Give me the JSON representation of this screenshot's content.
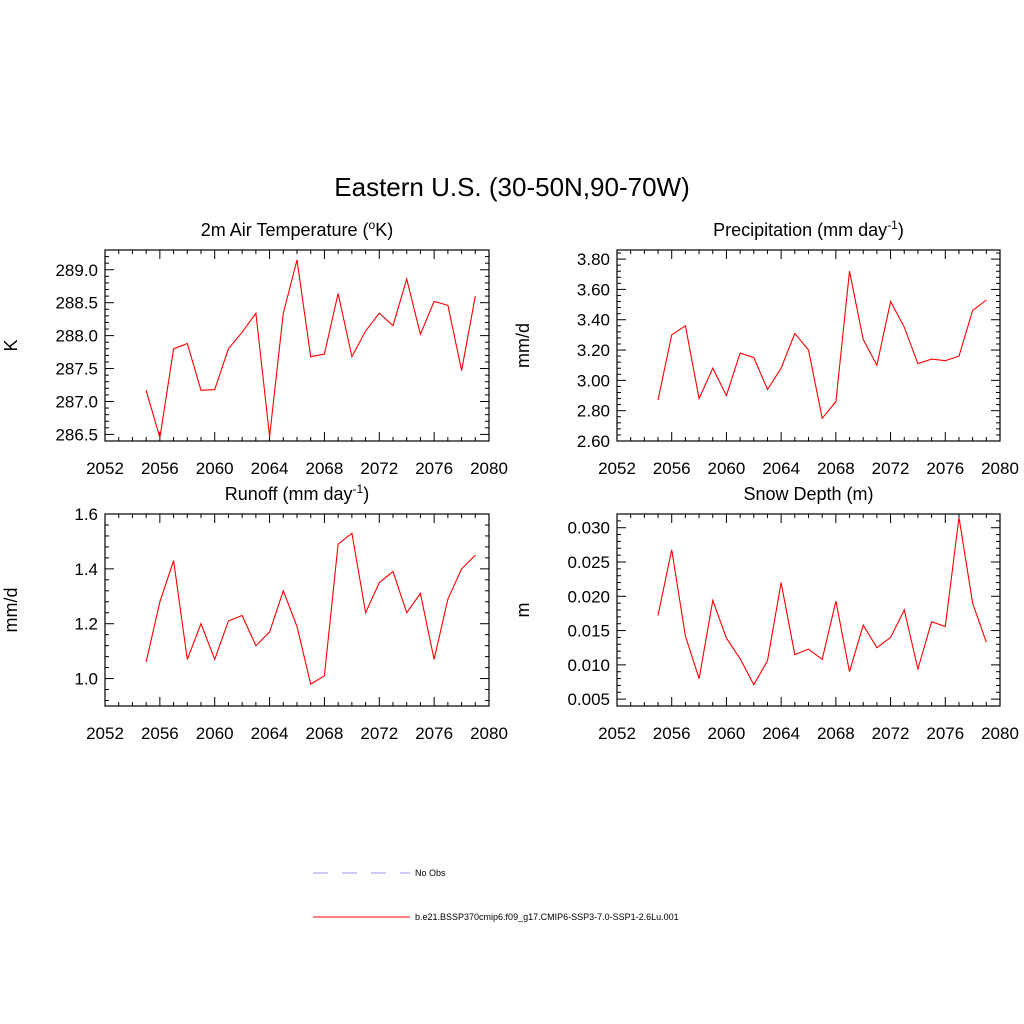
{
  "figure": {
    "title": "Eastern U.S. (30-50N,90-70W)"
  },
  "legend": {
    "items": [
      {
        "label": "No Obs",
        "color": "#9999ee",
        "dash": true
      },
      {
        "label": "b.e21.BSSP370cmip6.f09_g17.CMIP6-SSP3-7.0-SSP1-2.6Lu.001",
        "color": "#ff0000",
        "dash": false
      }
    ]
  },
  "chart_data": [
    {
      "type": "line",
      "title_main": "2m Air Temperature (",
      "title_sup": "o",
      "title_end": "K)",
      "ylabel": "K",
      "xlim": [
        2052,
        2080
      ],
      "xticks": [
        2052,
        2056,
        2060,
        2064,
        2068,
        2072,
        2076,
        2080
      ],
      "ylim": [
        286.4,
        289.3
      ],
      "yticks": [
        286.5,
        287.0,
        287.5,
        288.0,
        288.5,
        289.0
      ],
      "ydecimals": 1,
      "x": [
        2055,
        2056,
        2057,
        2058,
        2059,
        2060,
        2061,
        2062,
        2063,
        2064,
        2065,
        2066,
        2067,
        2068,
        2069,
        2070,
        2071,
        2072,
        2073,
        2074,
        2075,
        2076,
        2077,
        2078,
        2079
      ],
      "series": [
        {
          "color": "#ff0000",
          "values": [
            287.17,
            286.45,
            287.8,
            287.88,
            287.17,
            287.18,
            287.8,
            288.05,
            288.34,
            286.47,
            288.34,
            289.15,
            287.68,
            287.72,
            288.64,
            287.68,
            288.07,
            288.34,
            288.15,
            288.86,
            288.02,
            288.52,
            288.46,
            287.47,
            288.6
          ]
        }
      ]
    },
    {
      "type": "line",
      "title_main": "Precipitation (mm day",
      "title_sup": "-1",
      "title_end": ")",
      "ylabel": "mm/d",
      "xlim": [
        2052,
        2080
      ],
      "xticks": [
        2052,
        2056,
        2060,
        2064,
        2068,
        2072,
        2076,
        2080
      ],
      "ylim": [
        2.6,
        3.86
      ],
      "yticks": [
        2.6,
        2.8,
        3.0,
        3.2,
        3.4,
        3.6,
        3.8
      ],
      "ydecimals": 2,
      "x": [
        2055,
        2056,
        2057,
        2058,
        2059,
        2060,
        2061,
        2062,
        2063,
        2064,
        2065,
        2066,
        2067,
        2068,
        2069,
        2070,
        2071,
        2072,
        2073,
        2074,
        2075,
        2076,
        2077,
        2078,
        2079
      ],
      "series": [
        {
          "color": "#ff0000",
          "values": [
            2.87,
            3.3,
            3.36,
            2.88,
            3.08,
            2.9,
            3.18,
            3.15,
            2.94,
            3.08,
            3.31,
            3.2,
            2.75,
            2.86,
            3.72,
            3.27,
            3.1,
            3.52,
            3.35,
            3.11,
            3.14,
            3.13,
            3.16,
            3.46,
            3.53
          ]
        }
      ]
    },
    {
      "type": "line",
      "title_main": "Runoff (mm day",
      "title_sup": "-1",
      "title_end": ")",
      "ylabel": "mm/d",
      "xlim": [
        2052,
        2080
      ],
      "xticks": [
        2052,
        2056,
        2060,
        2064,
        2068,
        2072,
        2076,
        2080
      ],
      "ylim": [
        0.9,
        1.6
      ],
      "yticks": [
        1.0,
        1.2,
        1.4,
        1.6
      ],
      "ydecimals": 1,
      "x": [
        2055,
        2056,
        2057,
        2058,
        2059,
        2060,
        2061,
        2062,
        2063,
        2064,
        2065,
        2066,
        2067,
        2068,
        2069,
        2070,
        2071,
        2072,
        2073,
        2074,
        2075,
        2076,
        2077,
        2078,
        2079
      ],
      "series": [
        {
          "color": "#ff0000",
          "values": [
            1.06,
            1.28,
            1.43,
            1.07,
            1.2,
            1.07,
            1.21,
            1.23,
            1.12,
            1.17,
            1.32,
            1.19,
            0.98,
            1.01,
            1.49,
            1.53,
            1.24,
            1.35,
            1.39,
            1.24,
            1.31,
            1.07,
            1.29,
            1.4,
            1.45
          ]
        }
      ]
    },
    {
      "type": "line",
      "title_main": "Snow Depth (m)",
      "title_sup": "",
      "title_end": "",
      "ylabel": "m",
      "xlim": [
        2052,
        2080
      ],
      "xticks": [
        2052,
        2056,
        2060,
        2064,
        2068,
        2072,
        2076,
        2080
      ],
      "ylim": [
        0.004,
        0.032
      ],
      "yticks": [
        0.005,
        0.01,
        0.015,
        0.02,
        0.025,
        0.03
      ],
      "ydecimals": 3,
      "x": [
        2055,
        2056,
        2057,
        2058,
        2059,
        2060,
        2061,
        2062,
        2063,
        2064,
        2065,
        2066,
        2067,
        2068,
        2069,
        2070,
        2071,
        2072,
        2073,
        2074,
        2075,
        2076,
        2077,
        2078,
        2079
      ],
      "series": [
        {
          "color": "#ff0000",
          "values": [
            0.0172,
            0.0268,
            0.0142,
            0.008,
            0.0194,
            0.0139,
            0.0109,
            0.0071,
            0.0106,
            0.022,
            0.0115,
            0.0123,
            0.0108,
            0.0193,
            0.009,
            0.0158,
            0.0125,
            0.014,
            0.018,
            0.0094,
            0.0163,
            0.0156,
            0.0315,
            0.019,
            0.0133
          ]
        }
      ]
    }
  ]
}
